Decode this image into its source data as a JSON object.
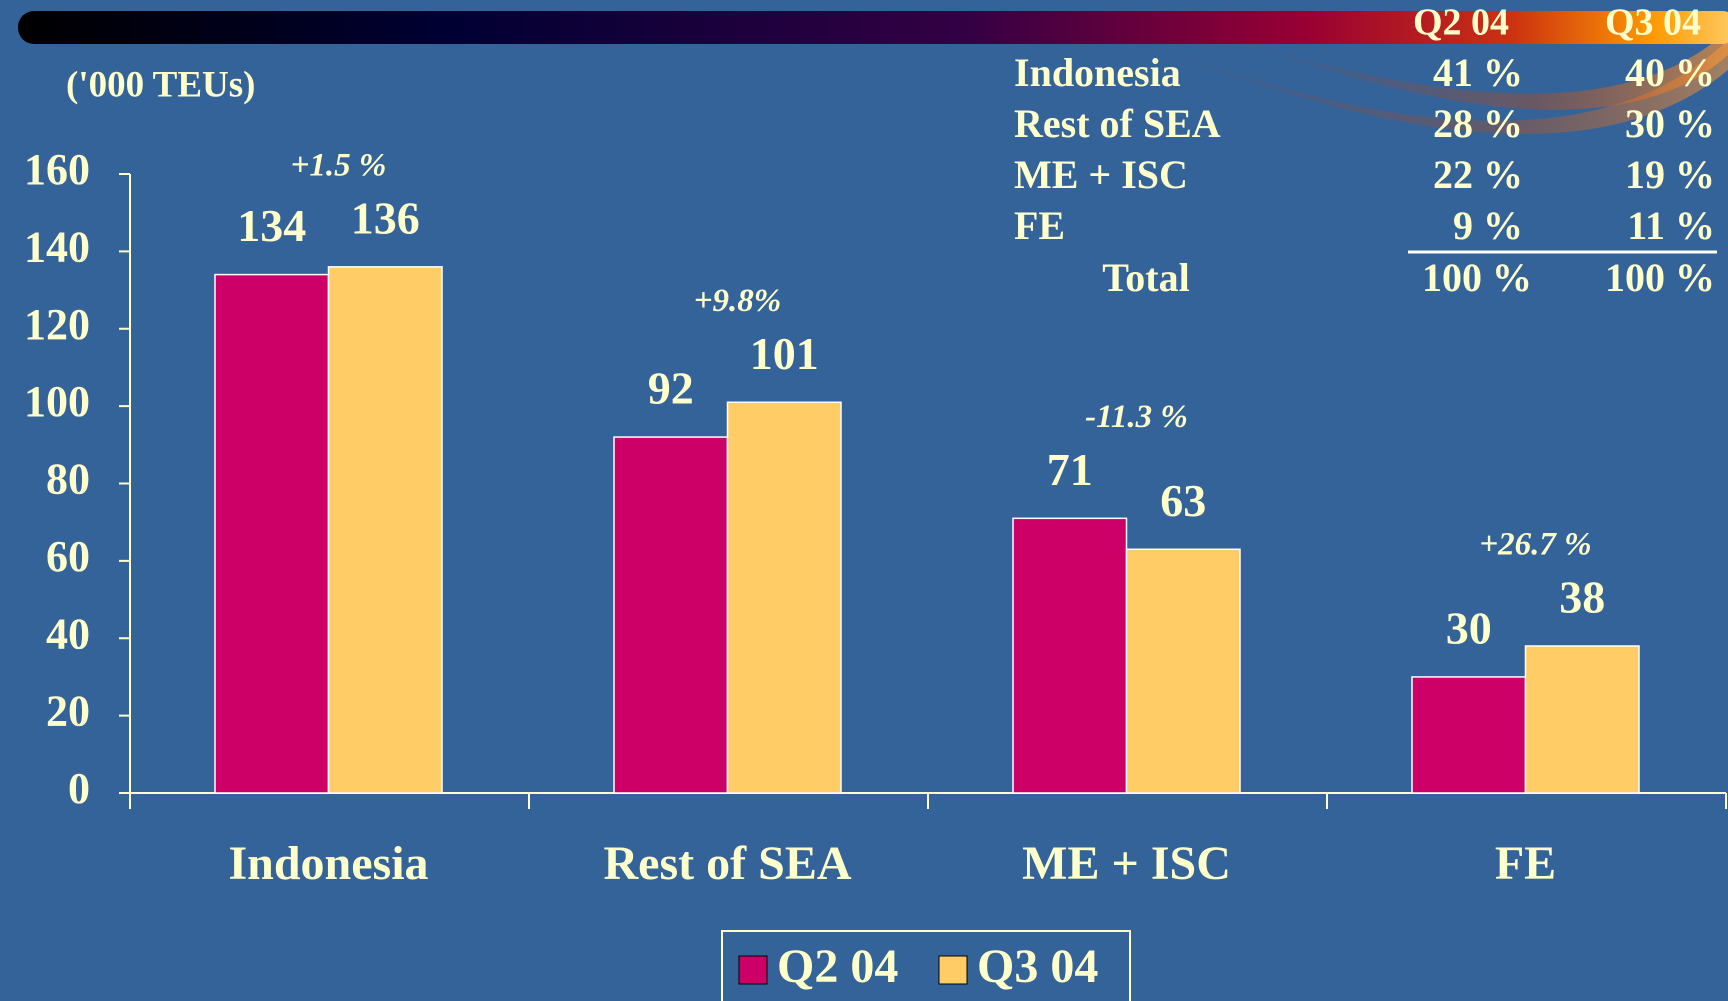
{
  "chart_data": {
    "type": "bar",
    "ylabel": "('000 TEUs)",
    "categories": [
      "Indonesia",
      "Rest of SEA",
      "ME + ISC",
      "FE"
    ],
    "series": [
      {
        "name": "Q2 04",
        "color": "#cc0066",
        "values": [
          134,
          92,
          71,
          30
        ]
      },
      {
        "name": "Q3 04",
        "color": "#ffcc66",
        "values": [
          136,
          101,
          63,
          38
        ]
      }
    ],
    "annotations": [
      "+1.5 %",
      "+9.8%",
      "-11.3 %",
      "+26.7 %"
    ],
    "ylim": [
      0,
      160
    ],
    "yticks": [
      0,
      20,
      40,
      60,
      80,
      100,
      120,
      140,
      160
    ],
    "legend": "bottom"
  },
  "share_table": {
    "columns": [
      "Q2 04",
      "Q3 04"
    ],
    "rows": [
      {
        "label": "Indonesia",
        "values": [
          "41 %",
          "40 %"
        ]
      },
      {
        "label": "Rest of SEA",
        "values": [
          "28 %",
          "30 %"
        ]
      },
      {
        "label": "ME + ISC",
        "values": [
          "22 %",
          "19 %"
        ]
      },
      {
        "label": "FE",
        "values": [
          "9 %",
          "11 %"
        ]
      }
    ],
    "total": {
      "label": "Total",
      "values": [
        "100 %",
        "100 %"
      ]
    }
  }
}
